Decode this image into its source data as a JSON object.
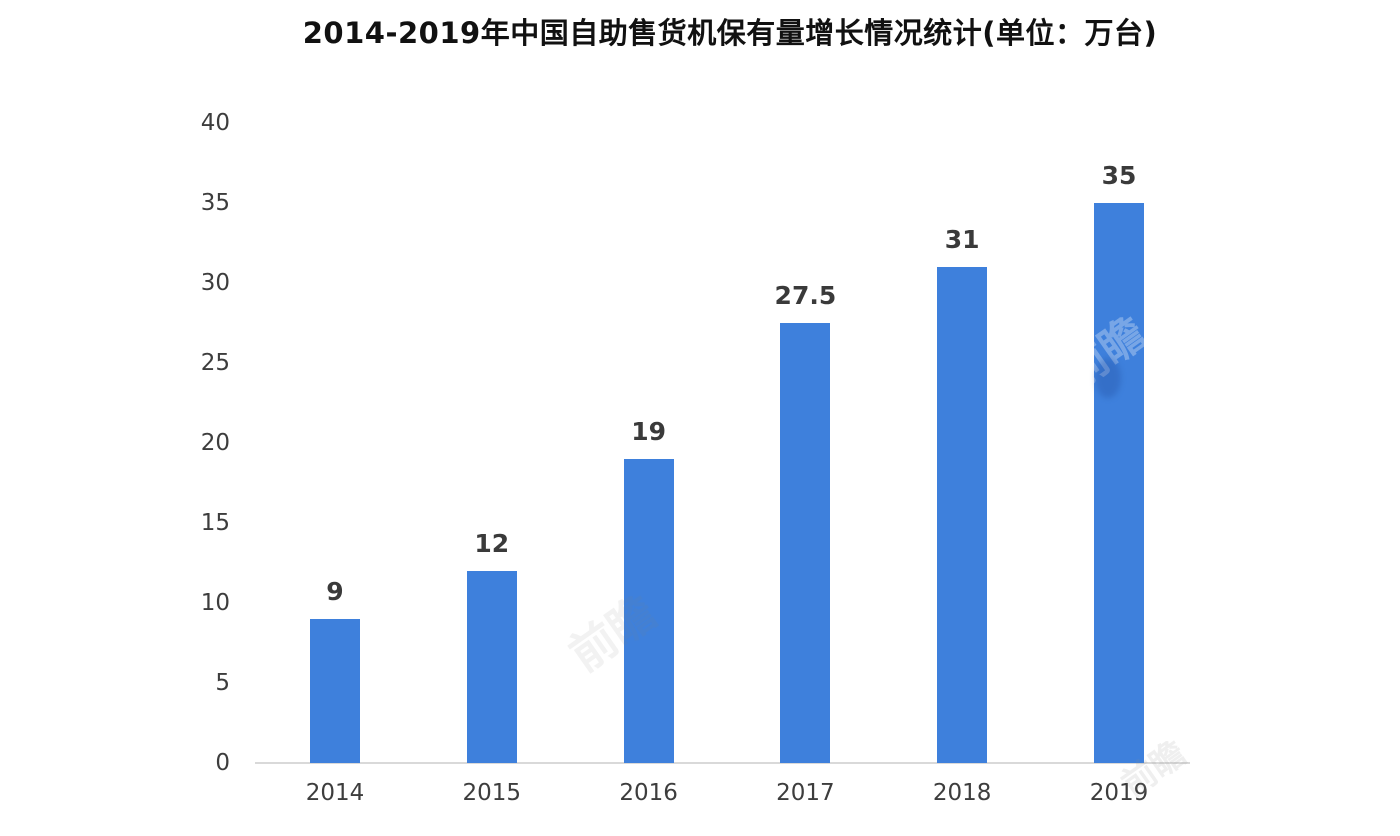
{
  "chart_data": {
    "type": "bar",
    "title": "2014-2019年中国自助售货机保有量增长情况统计(单位：万台)",
    "categories": [
      "2014",
      "2015",
      "2016",
      "2017",
      "2018",
      "2019"
    ],
    "values": [
      9,
      12,
      19,
      27.5,
      31,
      35
    ],
    "value_labels": [
      "9",
      "12",
      "19",
      "27.5",
      "31",
      "35"
    ],
    "yticks": [
      0,
      5,
      10,
      15,
      20,
      25,
      30,
      35,
      40
    ],
    "ylim": [
      0,
      40
    ],
    "xlabel": "",
    "ylabel": "",
    "grid": false,
    "legend": "none",
    "bar_color": "#3e80dc",
    "baseline_color": "#d9d9d9",
    "title_color": "#111111",
    "tick_color": "#3d3d3d",
    "value_label_color": "#3a3a3a",
    "background": "#ffffff"
  },
  "watermark": {
    "text": "前瞻"
  }
}
